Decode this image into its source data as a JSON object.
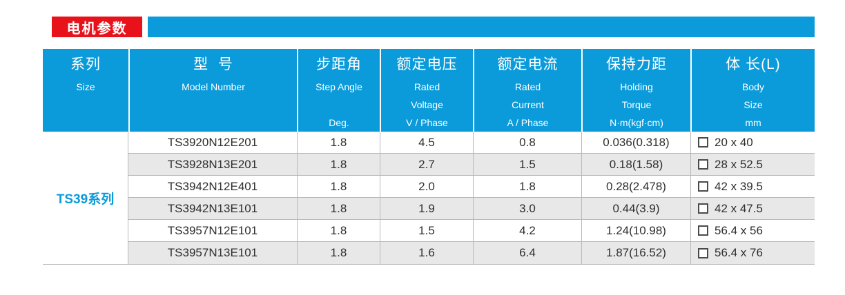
{
  "colors": {
    "accent_blue": "#0b9bda",
    "badge_red": "#e8121a",
    "row_stripe": "#e8e8e9",
    "grid_border": "#b9b9b9",
    "body_text": "#2e2e2e"
  },
  "header": {
    "badge_label": "电机参数"
  },
  "table": {
    "series_label": "TS39系列",
    "columns": [
      {
        "zh": "系列",
        "en": [
          "Size"
        ]
      },
      {
        "zh": "型  号",
        "en": [
          "Model Number"
        ]
      },
      {
        "zh": "步距角",
        "en": [
          "Step Angle",
          "",
          "Deg."
        ]
      },
      {
        "zh": "额定电压",
        "en": [
          "Rated",
          "Voltage",
          "V / Phase"
        ]
      },
      {
        "zh": "额定电流",
        "en": [
          "Rated",
          "Current",
          "A / Phase"
        ]
      },
      {
        "zh": "保持力距",
        "en": [
          "Holding",
          "Torque",
          "N·m(kgf·cm)"
        ]
      },
      {
        "zh": "体 长(L)",
        "en": [
          "Body",
          "Size",
          "mm"
        ]
      }
    ],
    "rows": [
      {
        "model": "TS3920N12E201",
        "step_angle": "1.8",
        "rated_voltage": "4.5",
        "rated_current": "0.8",
        "holding_torque": "0.036(0.318)",
        "body_size": "20 x 40"
      },
      {
        "model": "TS3928N13E201",
        "step_angle": "1.8",
        "rated_voltage": "2.7",
        "rated_current": "1.5",
        "holding_torque": "0.18(1.58)",
        "body_size": "28 x 52.5"
      },
      {
        "model": "TS3942N12E401",
        "step_angle": "1.8",
        "rated_voltage": "2.0",
        "rated_current": "1.8",
        "holding_torque": "0.28(2.478)",
        "body_size": "42 x 39.5"
      },
      {
        "model": "TS3942N13E101",
        "step_angle": "1.8",
        "rated_voltage": "1.9",
        "rated_current": "3.0",
        "holding_torque": "0.44(3.9)",
        "body_size": "42 x 47.5"
      },
      {
        "model": "TS3957N12E101",
        "step_angle": "1.8",
        "rated_voltage": "1.5",
        "rated_current": "4.2",
        "holding_torque": "1.24(10.98)",
        "body_size": "56.4 x 56"
      },
      {
        "model": "TS3957N13E101",
        "step_angle": "1.8",
        "rated_voltage": "1.6",
        "rated_current": "6.4",
        "holding_torque": "1.87(16.52)",
        "body_size": "56.4 x 76"
      }
    ]
  }
}
